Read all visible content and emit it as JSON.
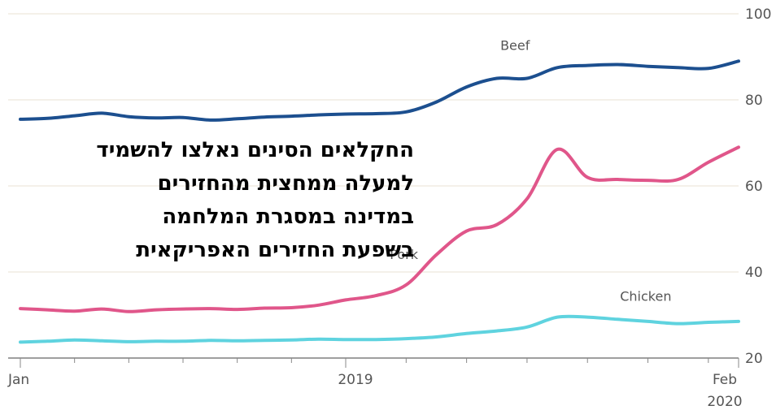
{
  "chart_data": {
    "type": "line",
    "title": "",
    "xlabel": "",
    "ylabel": "",
    "ylim": [
      20,
      100
    ],
    "yticks": [
      20,
      40,
      60,
      80,
      100
    ],
    "grid": true,
    "x_ticks": [
      "Jan",
      "2019",
      "Feb",
      "2020"
    ],
    "x_range": [
      "2018-01",
      "2020-02"
    ],
    "series": [
      {
        "name": "Beef",
        "color": "#1c4f8f",
        "x": [
          "2018-01",
          "2018-02",
          "2018-03",
          "2018-04",
          "2018-05",
          "2018-06",
          "2018-07",
          "2018-08",
          "2018-09",
          "2018-10",
          "2018-11",
          "2018-12",
          "2019-01",
          "2019-02",
          "2019-03",
          "2019-04",
          "2019-05",
          "2019-06",
          "2019-07",
          "2019-08",
          "2019-09",
          "2019-10",
          "2019-11",
          "2019-12",
          "2020-01",
          "2020-02"
        ],
        "values": [
          75.5,
          75.7,
          76.3,
          76.9,
          76.1,
          75.8,
          75.9,
          75.3,
          75.6,
          76.0,
          76.2,
          76.5,
          76.7,
          76.8,
          77.2,
          79.5,
          83.0,
          85.0,
          85.0,
          87.5,
          88.0,
          88.2,
          87.8,
          87.5,
          87.3,
          89.0
        ]
      },
      {
        "name": "Pork",
        "color": "#e0568a",
        "x": [
          "2018-01",
          "2018-02",
          "2018-03",
          "2018-04",
          "2018-05",
          "2018-06",
          "2018-07",
          "2018-08",
          "2018-09",
          "2018-10",
          "2018-11",
          "2018-12",
          "2019-01",
          "2019-02",
          "2019-03",
          "2019-04",
          "2019-05",
          "2019-06",
          "2019-07",
          "2019-08",
          "2019-09",
          "2019-10",
          "2019-11",
          "2019-12",
          "2020-01",
          "2020-02"
        ],
        "values": [
          31.5,
          31.2,
          30.9,
          31.4,
          30.8,
          31.2,
          31.4,
          31.5,
          31.3,
          31.6,
          31.7,
          32.3,
          33.5,
          34.5,
          37.0,
          44.0,
          49.5,
          51.0,
          57.0,
          68.5,
          62.0,
          61.5,
          61.3,
          61.5,
          65.5,
          69.0
        ]
      },
      {
        "name": "Chicken",
        "color": "#5fd3df",
        "x": [
          "2018-01",
          "2018-02",
          "2018-03",
          "2018-04",
          "2018-05",
          "2018-06",
          "2018-07",
          "2018-08",
          "2018-09",
          "2018-10",
          "2018-11",
          "2018-12",
          "2019-01",
          "2019-02",
          "2019-03",
          "2019-04",
          "2019-05",
          "2019-06",
          "2019-07",
          "2019-08",
          "2019-09",
          "2019-10",
          "2019-11",
          "2019-12",
          "2020-01",
          "2020-02"
        ],
        "values": [
          23.7,
          23.9,
          24.2,
          24.0,
          23.8,
          23.9,
          23.9,
          24.1,
          24.0,
          24.1,
          24.2,
          24.4,
          24.3,
          24.3,
          24.5,
          24.9,
          25.7,
          26.3,
          27.2,
          29.5,
          29.5,
          29.0,
          28.5,
          28.0,
          28.3,
          28.5
        ]
      }
    ]
  },
  "overlay": {
    "lines": [
      "החקלאים הסינים נאלצו להשמיד",
      "למעלה ממחצית מהחזירים",
      "במדינה במסגרת המלחמה",
      "בשפעת החזירים האפריקאית"
    ]
  }
}
